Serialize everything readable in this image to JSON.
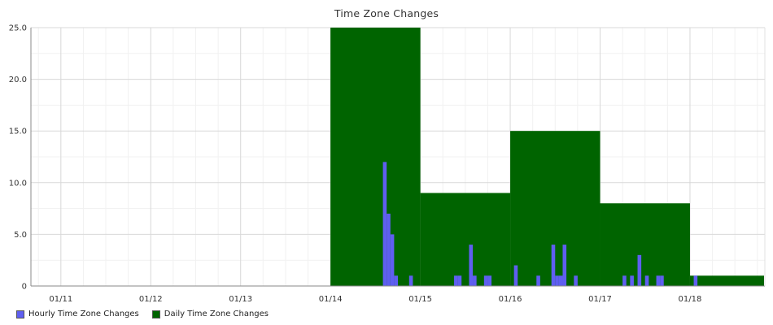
{
  "chart_data": {
    "type": "bar",
    "title": "Time Zone Changes",
    "xlabel": "",
    "ylabel": "",
    "ylim": [
      0,
      25
    ],
    "y_ticks": [
      "0",
      "5.0",
      "10.0",
      "15.0",
      "20.0",
      "25.0"
    ],
    "x_ticks": [
      "01/11",
      "01/12",
      "01/13",
      "01/14",
      "01/15",
      "01/16",
      "01/17",
      "01/18"
    ],
    "x_range": [
      "2014-01-10T16:00",
      "2014-01-18T20:00"
    ],
    "grid": true,
    "legend_position": "bottom-left",
    "series": [
      {
        "name": "Daily Time Zone Changes",
        "color": "#006400",
        "bin": "day",
        "points": [
          {
            "date": "01/14",
            "value": 25
          },
          {
            "date": "01/15",
            "value": 9
          },
          {
            "date": "01/16",
            "value": 15
          },
          {
            "date": "01/17",
            "value": 8
          },
          {
            "date": "01/18",
            "value": 1
          }
        ]
      },
      {
        "name": "Hourly Time Zone Changes",
        "color": "#5f5ff0",
        "bin": "hour",
        "points": [
          {
            "time": "01/14 14:00",
            "value": 12
          },
          {
            "time": "01/14 15:00",
            "value": 7
          },
          {
            "time": "01/14 16:00",
            "value": 5
          },
          {
            "time": "01/14 17:00",
            "value": 1
          },
          {
            "time": "01/14 21:00",
            "value": 1
          },
          {
            "time": "01/15 09:00",
            "value": 1
          },
          {
            "time": "01/15 10:00",
            "value": 1
          },
          {
            "time": "01/15 13:00",
            "value": 4
          },
          {
            "time": "01/15 14:00",
            "value": 1
          },
          {
            "time": "01/15 17:00",
            "value": 1
          },
          {
            "time": "01/15 18:00",
            "value": 1
          },
          {
            "time": "01/16 01:00",
            "value": 2
          },
          {
            "time": "01/16 07:00",
            "value": 1
          },
          {
            "time": "01/16 11:00",
            "value": 4
          },
          {
            "time": "01/16 12:00",
            "value": 1
          },
          {
            "time": "01/16 13:00",
            "value": 1
          },
          {
            "time": "01/16 14:00",
            "value": 4
          },
          {
            "time": "01/16 17:00",
            "value": 1
          },
          {
            "time": "01/17 06:00",
            "value": 1
          },
          {
            "time": "01/17 08:00",
            "value": 1
          },
          {
            "time": "01/17 10:00",
            "value": 3
          },
          {
            "time": "01/17 12:00",
            "value": 1
          },
          {
            "time": "01/17 15:00",
            "value": 1
          },
          {
            "time": "01/17 16:00",
            "value": 1
          },
          {
            "time": "01/18 01:00",
            "value": 1
          }
        ]
      }
    ]
  },
  "legend": {
    "hourly_label": "Hourly Time Zone Changes",
    "daily_label": "Daily Time Zone Changes",
    "hourly_color": "#5f5ff0",
    "daily_color": "#006400"
  }
}
